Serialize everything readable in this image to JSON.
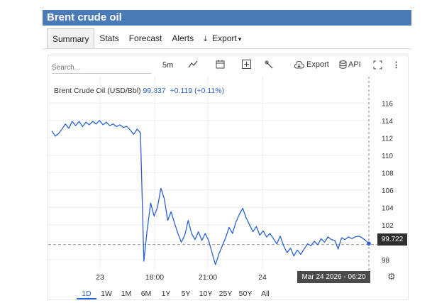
{
  "title": "Brent crude oil",
  "tabs": [
    {
      "label": "Summary",
      "active": true
    },
    {
      "label": "Stats"
    },
    {
      "label": "Forecast"
    },
    {
      "label": "Alerts"
    },
    {
      "label": "Export",
      "icon": "download-icon",
      "caret": "▾"
    }
  ],
  "toolbar": {
    "search_placeholder": "Search...",
    "interval": "5m",
    "export_label": "Export",
    "api_label": "API"
  },
  "legend": {
    "name": "Brent Crude Oil (USD/Bbl)",
    "price": "99.837",
    "change": "+0.119 (+0.11%)"
  },
  "cursor_label": "Mar 24 2026 - 06:20",
  "price_label": "99.722",
  "periods": [
    "1D",
    "1W",
    "1M",
    "6M",
    "1Y",
    "5Y",
    "10Y",
    "25Y",
    "50Y",
    "All"
  ],
  "selected_period": "1D",
  "colors": {
    "line": "#2a62d4",
    "title_bar": "#4a7ab8"
  },
  "chart_data": {
    "type": "line",
    "x_tick_labels": [
      "23",
      "18:00",
      "21:00",
      "24"
    ],
    "y_ticks": [
      98,
      100,
      102,
      104,
      106,
      108,
      110,
      112,
      114,
      116
    ],
    "ylim": [
      97,
      117
    ],
    "reference_price": 99.722,
    "series": [
      {
        "values": [
          112.8,
          112.2,
          112.5,
          113.0,
          113.6,
          113.1,
          113.9,
          113.4,
          113.9,
          113.3,
          113.8,
          113.5,
          113.9,
          113.6,
          114.0,
          113.5,
          113.8,
          113.4,
          113.6,
          113.3,
          113.5,
          113.2,
          113.3,
          112.9,
          112.4,
          113.0,
          112.6,
          97.8,
          101.5,
          104.5,
          103.0,
          104.0,
          106.2,
          105.0,
          102.5,
          103.5,
          102.2,
          101.0,
          100.0,
          100.8,
          102.5,
          101.0,
          100.3,
          101.2,
          100.2,
          101.0,
          100.2,
          98.8,
          97.4,
          98.6,
          99.6,
          100.5,
          101.7,
          101.0,
          102.3,
          103.2,
          103.9,
          102.8,
          102.0,
          101.2,
          101.8,
          100.8,
          101.3,
          100.6,
          101.0,
          100.4,
          99.8,
          100.7,
          99.6,
          98.8,
          99.3,
          98.4,
          99.1,
          98.6,
          99.2,
          99.8,
          99.6,
          100.1,
          99.7,
          100.4,
          100.0,
          100.6,
          100.3,
          100.2,
          99.2,
          100.5,
          100.3,
          100.6,
          100.4,
          100.6,
          100.7,
          100.5,
          100.2,
          99.84
        ]
      }
    ]
  }
}
